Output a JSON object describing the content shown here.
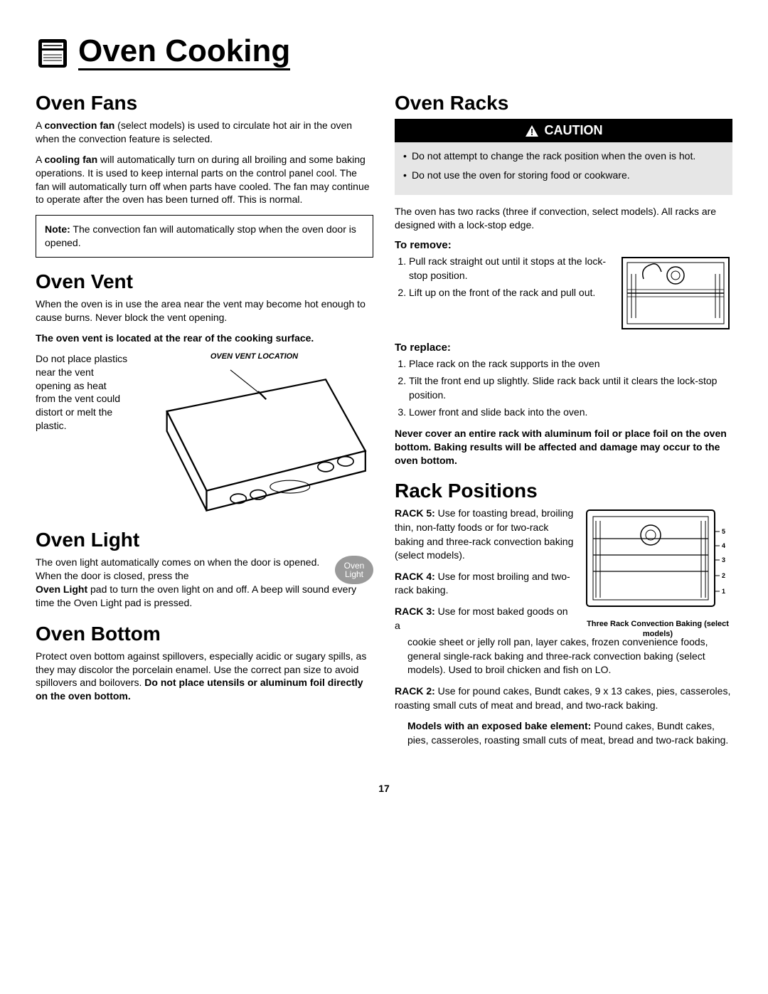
{
  "page": {
    "title": "Oven Cooking",
    "number": "17"
  },
  "left": {
    "fans": {
      "heading": "Oven Fans",
      "p1a": "A ",
      "p1b": "convection fan",
      "p1c": " (select models) is used to circulate hot air in the oven when the convection feature is selected.",
      "p2a": "A ",
      "p2b": "cooling fan",
      "p2c": " will automatically turn on during all broiling and some baking operations. It is used to keep internal parts on the control panel cool. The fan will automatically turn off when parts have cooled. The fan may continue to operate after the oven has been turned off. This is normal.",
      "note_label": "Note:",
      "note_text": " The convection fan will automatically stop when the oven door is opened."
    },
    "vent": {
      "heading": "Oven Vent",
      "p1": "When the oven is in use the area near the vent may become hot enough to cause burns. Never block the vent opening.",
      "p2": "The oven vent is located at the rear of the cooking surface.",
      "caption": "OVEN VENT LOCATION",
      "side_text": "Do not place plastics near the vent opening as heat from the vent could distort or melt the plastic."
    },
    "light": {
      "heading": "Oven Light",
      "badge_l1": "Oven",
      "badge_l2": "Light",
      "p1a": "The oven light automatically comes on when the door is opened.  When the door is closed, press the ",
      "p1b": "Oven Light",
      "p1c": " pad to turn the oven light on and off. A beep will sound every time the Oven Light pad is pressed."
    },
    "bottom": {
      "heading": "Oven Bottom",
      "p1a": "Protect oven bottom against spillovers, especially acidic or sugary spills, as they may discolor the porcelain enamel. Use the correct pan size to avoid spillovers and boilovers. ",
      "p1b": "Do not place utensils or aluminum foil directly on the oven bottom."
    }
  },
  "right": {
    "racks": {
      "heading": "Oven Racks",
      "caution_label": "CAUTION",
      "caution_items": [
        "Do not attempt to change the rack position when the oven is hot.",
        "Do not use the oven for storing food or cookware."
      ],
      "intro": "The oven has two racks (three if convection, select models). All racks are designed with a lock-stop edge.",
      "remove_h": "To remove:",
      "remove_steps": [
        "Pull rack straight out until it stops at the lock-stop position.",
        "Lift up on the front of the rack and pull out."
      ],
      "replace_h": "To replace:",
      "replace_steps": [
        "Place rack on the rack supports in the oven",
        "Tilt the front end up slightly. Slide rack back until it clears the lock-stop position.",
        "Lower front and slide back into the oven."
      ],
      "foil_warning": "Never cover an entire rack with aluminum foil or place foil on the oven bottom.  Baking results will be affected and damage may occur to the oven bottom."
    },
    "positions": {
      "heading": "Rack Positions",
      "fig_caption": "Three Rack Convection Baking (select models)",
      "rack_nums": [
        "5",
        "4",
        "3",
        "2",
        "1"
      ],
      "items": [
        {
          "label": "RACK 5:",
          "text": "  Use for toasting bread, broiling thin, non-fatty foods or for two-rack baking and three-rack convection baking (select models)."
        },
        {
          "label": "RACK 4:",
          "text": "  Use for most broiling and two-rack baking."
        },
        {
          "label": "RACK 3:",
          "text": "  Use for most baked goods on a cookie sheet or jelly roll pan, layer cakes, frozen convenience foods, general single-rack baking and three-rack convection baking (select models). Used to broil chicken and fish on LO."
        },
        {
          "label": "RACK 2:",
          "text": "  Use for pound cakes, Bundt cakes, 9 x 13 cakes, pies, casseroles, roasting small cuts of meat and bread, and two-rack baking."
        }
      ],
      "models_note_label": "Models with an exposed bake element:",
      "models_note_text": " Pound cakes, Bundt cakes, pies, casseroles, roasting small cuts of meat, bread and two-rack baking."
    }
  }
}
